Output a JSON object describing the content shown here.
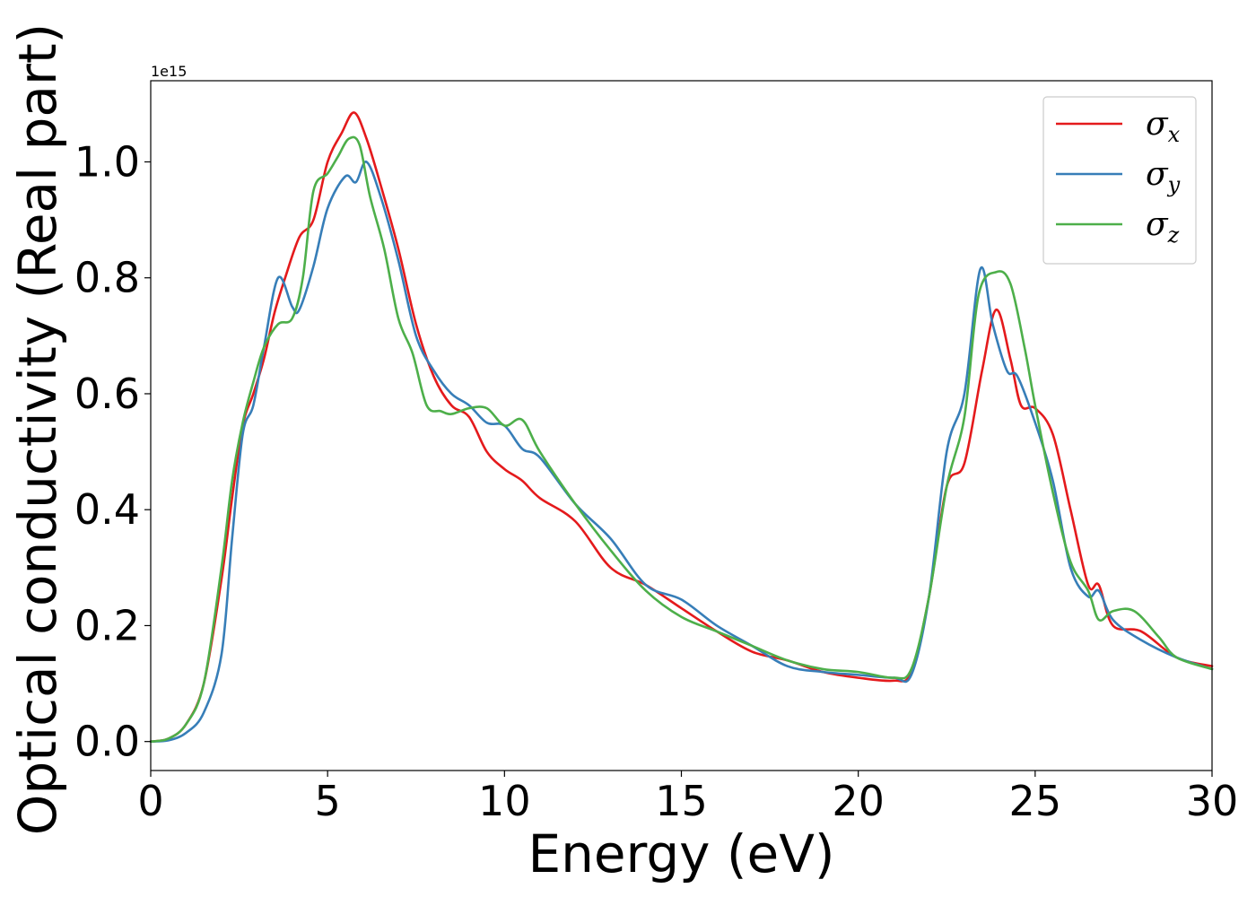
{
  "chart_data": {
    "type": "line",
    "xlabel": "Energy (eV)",
    "ylabel": "Optical conductivity (Real part)",
    "y_offset_label": "1e15",
    "xlim": [
      0,
      30
    ],
    "ylim": [
      -0.05,
      1.14
    ],
    "x_ticks": [
      0,
      5,
      10,
      15,
      20,
      25,
      30
    ],
    "x_tick_labels": [
      "0",
      "5",
      "10",
      "15",
      "20",
      "25",
      "30"
    ],
    "y_ticks": [
      0.0,
      0.2,
      0.4,
      0.6,
      0.8,
      1.0
    ],
    "y_tick_labels": [
      "0.0",
      "0.2",
      "0.4",
      "0.6",
      "0.8",
      "1.0"
    ],
    "grid": false,
    "legend_position": "top-right",
    "series": [
      {
        "name": "σx",
        "symbol": "σ",
        "subscript": "x",
        "color": "#e41a1c",
        "x": [
          0,
          0.5,
          1.0,
          1.5,
          2.0,
          2.3,
          2.6,
          2.9,
          3.2,
          3.5,
          3.8,
          4.2,
          4.6,
          5.0,
          5.4,
          5.75,
          6.1,
          6.5,
          7.0,
          7.5,
          8.0,
          8.5,
          9.0,
          9.5,
          10.0,
          10.5,
          11.0,
          12.0,
          13.0,
          14.0,
          15.0,
          16.0,
          17.0,
          18.0,
          19.0,
          20.0,
          21.0,
          21.5,
          22.0,
          22.5,
          23.0,
          23.5,
          23.9,
          24.3,
          24.6,
          25.0,
          25.5,
          26.0,
          26.5,
          26.8,
          27.2,
          28.0,
          29.0,
          30.0
        ],
        "y": [
          0.0,
          0.005,
          0.03,
          0.1,
          0.28,
          0.42,
          0.545,
          0.6,
          0.66,
          0.74,
          0.8,
          0.87,
          0.9,
          1.0,
          1.05,
          1.085,
          1.04,
          0.96,
          0.85,
          0.72,
          0.63,
          0.58,
          0.56,
          0.5,
          0.47,
          0.45,
          0.42,
          0.38,
          0.3,
          0.27,
          0.23,
          0.19,
          0.155,
          0.14,
          0.12,
          0.11,
          0.105,
          0.12,
          0.25,
          0.44,
          0.48,
          0.64,
          0.745,
          0.66,
          0.58,
          0.575,
          0.53,
          0.4,
          0.27,
          0.27,
          0.2,
          0.19,
          0.145,
          0.13
        ]
      },
      {
        "name": "σy",
        "symbol": "σ",
        "subscript": "y",
        "color": "#377eb8",
        "x": [
          0,
          0.5,
          1.0,
          1.5,
          2.0,
          2.3,
          2.6,
          2.9,
          3.2,
          3.6,
          4.0,
          4.2,
          4.6,
          5.0,
          5.5,
          5.8,
          6.1,
          6.5,
          7.0,
          7.5,
          8.0,
          8.5,
          9.0,
          9.5,
          10.0,
          10.5,
          11.0,
          12.0,
          13.0,
          14.0,
          15.0,
          16.0,
          17.0,
          18.0,
          19.0,
          20.0,
          21.0,
          21.5,
          22.0,
          22.5,
          23.0,
          23.45,
          23.8,
          24.2,
          24.5,
          25.0,
          25.5,
          26.0,
          26.5,
          26.8,
          27.2,
          28.0,
          29.0,
          30.0
        ],
        "y": [
          0.0,
          0.002,
          0.015,
          0.05,
          0.15,
          0.35,
          0.53,
          0.58,
          0.68,
          0.8,
          0.75,
          0.745,
          0.82,
          0.92,
          0.975,
          0.965,
          1.0,
          0.94,
          0.83,
          0.7,
          0.64,
          0.6,
          0.58,
          0.55,
          0.545,
          0.505,
          0.49,
          0.41,
          0.35,
          0.27,
          0.245,
          0.2,
          0.165,
          0.13,
          0.12,
          0.115,
          0.11,
          0.115,
          0.25,
          0.5,
          0.6,
          0.815,
          0.72,
          0.64,
          0.63,
          0.55,
          0.45,
          0.3,
          0.25,
          0.26,
          0.21,
          0.175,
          0.145,
          0.125
        ]
      },
      {
        "name": "σz",
        "symbol": "σ",
        "subscript": "z",
        "color": "#4daf4a",
        "x": [
          0,
          0.5,
          1.0,
          1.5,
          2.0,
          2.3,
          2.6,
          2.9,
          3.2,
          3.6,
          4.0,
          4.3,
          4.6,
          5.0,
          5.3,
          5.6,
          5.9,
          6.2,
          6.6,
          7.0,
          7.4,
          7.8,
          8.2,
          8.5,
          9.0,
          9.5,
          10.0,
          10.5,
          11.0,
          12.0,
          13.0,
          14.0,
          15.0,
          16.0,
          17.0,
          18.0,
          19.0,
          20.0,
          21.0,
          21.5,
          22.0,
          22.5,
          23.0,
          23.4,
          23.9,
          24.3,
          24.7,
          25.0,
          25.5,
          26.0,
          26.5,
          26.8,
          27.2,
          27.8,
          28.5,
          29.0,
          30.0
        ],
        "y": [
          0.0,
          0.005,
          0.03,
          0.1,
          0.3,
          0.45,
          0.55,
          0.62,
          0.68,
          0.72,
          0.73,
          0.8,
          0.95,
          0.98,
          1.01,
          1.04,
          1.03,
          0.94,
          0.85,
          0.73,
          0.67,
          0.58,
          0.57,
          0.565,
          0.575,
          0.575,
          0.545,
          0.555,
          0.5,
          0.41,
          0.33,
          0.26,
          0.215,
          0.19,
          0.165,
          0.14,
          0.125,
          0.12,
          0.11,
          0.125,
          0.25,
          0.44,
          0.56,
          0.77,
          0.81,
          0.79,
          0.68,
          0.58,
          0.43,
          0.31,
          0.26,
          0.21,
          0.225,
          0.225,
          0.18,
          0.145,
          0.125
        ]
      }
    ]
  }
}
